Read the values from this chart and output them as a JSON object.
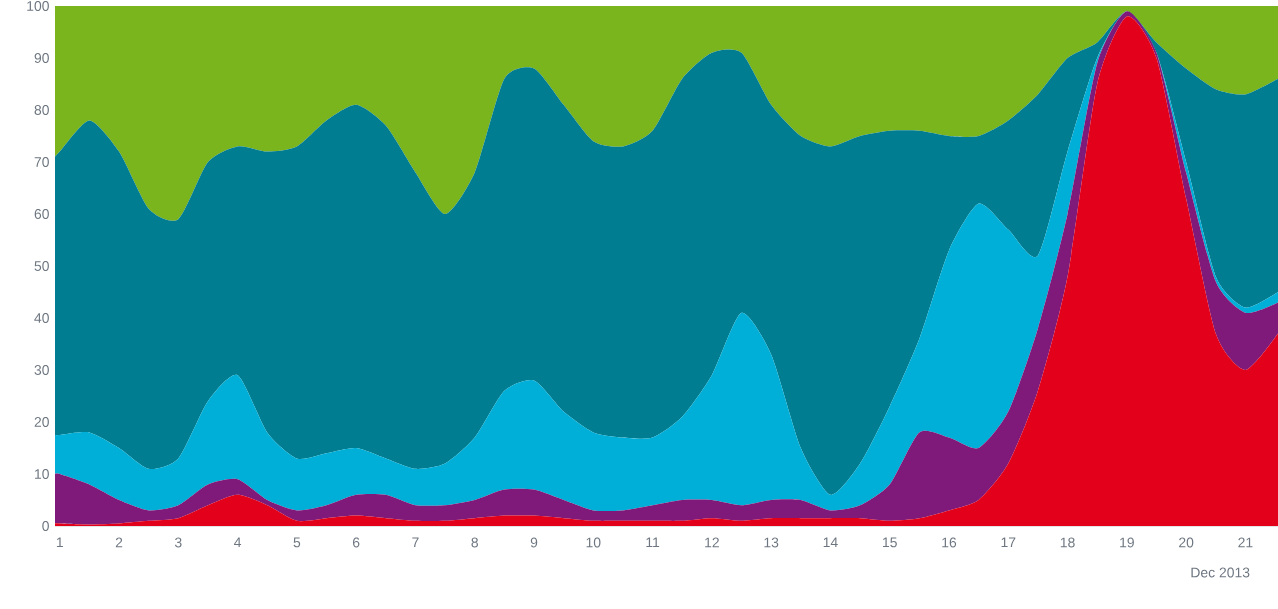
{
  "chart_data": {
    "type": "area",
    "stacked": true,
    "xlabel": "Dec 2013",
    "x": [
      0.92,
      1,
      1.5,
      2,
      2.5,
      3,
      3.5,
      4,
      4.5,
      5,
      5.5,
      6,
      6.5,
      7,
      7.5,
      8,
      8.5,
      9,
      9.5,
      10,
      10.5,
      11,
      11.5,
      12,
      12.5,
      13,
      13.5,
      14,
      14.5,
      15,
      15.5,
      16,
      16.5,
      17,
      17.5,
      18,
      18.5,
      19,
      19.5,
      20,
      20.5,
      21,
      21.55
    ],
    "xlim": [
      0.92,
      21.55
    ],
    "xticks": [
      1,
      2,
      3,
      4,
      5,
      6,
      7,
      8,
      9,
      10,
      11,
      12,
      13,
      14,
      15,
      16,
      17,
      18,
      19,
      20,
      21
    ],
    "ylim": [
      0,
      100
    ],
    "yticks": [
      0,
      10,
      20,
      30,
      40,
      50,
      60,
      70,
      80,
      90,
      100
    ],
    "series": [
      {
        "color": "#e2001a",
        "values": [
          0.5,
          0.5,
          0.3,
          0.5,
          1,
          1.5,
          4,
          6,
          4,
          1,
          1.5,
          2,
          1.5,
          1,
          1,
          1.5,
          2,
          2,
          1.5,
          1,
          1,
          1,
          1,
          1.5,
          1,
          1.5,
          1.5,
          1.5,
          1.5,
          1,
          1.5,
          3,
          5,
          12,
          26,
          48,
          85,
          98,
          90,
          63,
          37,
          30,
          37
        ]
      },
      {
        "color": "#7f1a7a",
        "values": [
          9.5,
          9.5,
          7.7,
          4.5,
          2,
          2.5,
          4,
          3,
          1,
          2,
          2.5,
          4,
          4.5,
          3,
          3,
          3.5,
          5,
          5,
          3.5,
          2,
          2,
          3,
          4,
          3.5,
          3,
          3.5,
          3.5,
          1.5,
          2.5,
          7,
          16.5,
          14,
          10,
          10,
          12,
          12,
          4,
          1,
          1,
          5,
          10,
          11,
          6
        ]
      },
      {
        "color": "#00afd8",
        "values": [
          7.5,
          7.5,
          10,
          10,
          8,
          9,
          16,
          20,
          13,
          10,
          10,
          9,
          7,
          7,
          8,
          12,
          19,
          21,
          17,
          15,
          14,
          13,
          16,
          24,
          37,
          28,
          10,
          3,
          8,
          15,
          18,
          36,
          47,
          35,
          14,
          12,
          1,
          0,
          0,
          2,
          1,
          1,
          2
        ]
      },
      {
        "color": "#007d91",
        "values": [
          53.5,
          54.5,
          60,
          57,
          50,
          46,
          46,
          44,
          54,
          60,
          64,
          66,
          64,
          57,
          48,
          51,
          60,
          60,
          59,
          56,
          56,
          59,
          65,
          62,
          50,
          48,
          60,
          67,
          63,
          53,
          40,
          22,
          13,
          21,
          31,
          18,
          3,
          0,
          2,
          18,
          36,
          41,
          41
        ]
      },
      {
        "color": "#7ab51d",
        "values": [
          29,
          28,
          22,
          28,
          39,
          41,
          30,
          27,
          28,
          27,
          22,
          19,
          23,
          32,
          40,
          32,
          14,
          12,
          19,
          26,
          27,
          24,
          14,
          9,
          9,
          19,
          25,
          27,
          25,
          24,
          24,
          25,
          25,
          22,
          17,
          10,
          7,
          1,
          7,
          12,
          16,
          17,
          14
        ]
      }
    ]
  }
}
